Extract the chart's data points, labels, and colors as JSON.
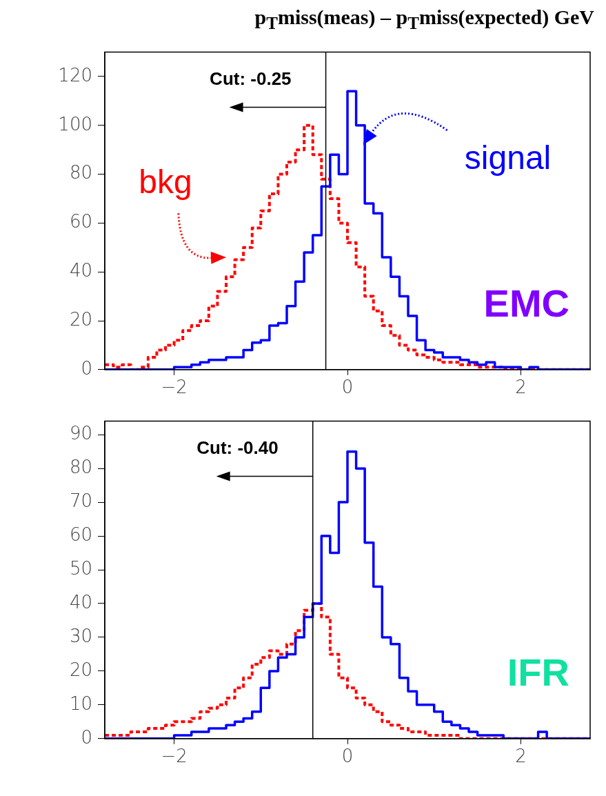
{
  "chart_data": [
    {
      "type": "histogram",
      "title": "p$_{T}$miss(meas) – p$_{T}$miss(expected) GeV",
      "bins": [
        -2.8,
        -2.7,
        -2.6,
        -2.5,
        -2.4,
        -2.3,
        -2.2,
        -2.1,
        -2.0,
        -1.9,
        -1.8,
        -1.7,
        -1.6,
        -1.5,
        -1.4,
        -1.3,
        -1.2,
        -1.1,
        -1.0,
        -0.9,
        -0.8,
        -0.7,
        -0.6,
        -0.5,
        -0.4,
        -0.3,
        -0.2,
        -0.1,
        0.0,
        0.1,
        0.2,
        0.3,
        0.4,
        0.5,
        0.6,
        0.7,
        0.8,
        0.9,
        1.0,
        1.1,
        1.2,
        1.3,
        1.4,
        1.5,
        1.6,
        1.7,
        1.8,
        1.9,
        2.0,
        2.1,
        2.2,
        2.3,
        2.4,
        2.5,
        2.6,
        2.7,
        2.8
      ],
      "series": [
        {
          "name": "signal",
          "color": "#0000ff",
          "line_style": "solid",
          "values": [
            0,
            0,
            0,
            0,
            0,
            0,
            0,
            0,
            1,
            1,
            2,
            3,
            4,
            4,
            5,
            5,
            8,
            11,
            12,
            18,
            19,
            26,
            36,
            48,
            55,
            75,
            88,
            80,
            114,
            100,
            68,
            64,
            46,
            38,
            30,
            22,
            12,
            8,
            7,
            5,
            5,
            4,
            3,
            2,
            3,
            1,
            1,
            1,
            0,
            1,
            0,
            0,
            0,
            0,
            0,
            0
          ]
        },
        {
          "name": "bkg",
          "color": "#ff0000",
          "line_style": "dashed",
          "values": [
            2,
            1,
            2,
            0,
            1,
            5,
            8,
            10,
            12,
            16,
            18,
            20,
            26,
            32,
            38,
            45,
            50,
            58,
            65,
            72,
            80,
            85,
            90,
            100,
            88,
            78,
            70,
            60,
            52,
            42,
            30,
            24,
            18,
            14,
            10,
            8,
            6,
            5,
            4,
            3,
            3,
            2,
            2,
            1,
            1,
            1,
            0,
            0,
            0,
            0,
            0,
            0,
            0,
            0,
            0,
            0
          ]
        }
      ],
      "xlim": [
        -2.8,
        2.8
      ],
      "xticks": [
        -2,
        0,
        2
      ],
      "ylim": [
        0,
        130
      ],
      "yticks": [
        0,
        20,
        40,
        60,
        80,
        100,
        120
      ],
      "ref_lines": [
        {
          "axis": "x",
          "value": -0.25,
          "label": "Cut: -0.25",
          "color": "#000000"
        }
      ],
      "annotations": [
        "EMC"
      ],
      "grid": false,
      "legend": false
    },
    {
      "type": "histogram",
      "bins": [
        -2.8,
        -2.7,
        -2.6,
        -2.5,
        -2.4,
        -2.3,
        -2.2,
        -2.1,
        -2.0,
        -1.9,
        -1.8,
        -1.7,
        -1.6,
        -1.5,
        -1.4,
        -1.3,
        -1.2,
        -1.1,
        -1.0,
        -0.9,
        -0.8,
        -0.7,
        -0.6,
        -0.5,
        -0.4,
        -0.3,
        -0.2,
        -0.1,
        0.0,
        0.1,
        0.2,
        0.3,
        0.4,
        0.5,
        0.6,
        0.7,
        0.8,
        0.9,
        1.0,
        1.1,
        1.2,
        1.3,
        1.4,
        1.5,
        1.6,
        1.7,
        1.8,
        1.9,
        2.0,
        2.1,
        2.2,
        2.3,
        2.4,
        2.5,
        2.6,
        2.7,
        2.8
      ],
      "series": [
        {
          "color": "#0000ff",
          "line_style": "solid",
          "values": [
            0,
            0,
            0,
            0,
            0,
            0,
            0,
            0,
            1,
            1,
            2,
            2,
            3,
            3,
            4,
            5,
            6,
            8,
            15,
            20,
            24,
            25,
            30,
            36,
            40,
            60,
            55,
            70,
            85,
            80,
            58,
            45,
            30,
            28,
            18,
            14,
            10,
            10,
            8,
            5,
            4,
            3,
            2,
            1,
            1,
            1,
            0,
            0,
            0,
            0,
            2,
            0,
            0,
            0,
            0,
            0
          ]
        },
        {
          "color": "#ff0000",
          "line_style": "dashed",
          "values": [
            1,
            1,
            1,
            2,
            2,
            3,
            3,
            4,
            5,
            5,
            6,
            8,
            9,
            10,
            12,
            15,
            18,
            22,
            24,
            26,
            25,
            28,
            32,
            38,
            40,
            36,
            25,
            18,
            15,
            12,
            10,
            8,
            5,
            4,
            3,
            2,
            2,
            1,
            1,
            1,
            1,
            0,
            0,
            0,
            0,
            0,
            0,
            0,
            0,
            0,
            0,
            0,
            0,
            0,
            0,
            0
          ]
        }
      ],
      "xlim": [
        -2.8,
        2.8
      ],
      "xticks": [
        -2,
        0,
        2
      ],
      "ylim": [
        0,
        94
      ],
      "yticks": [
        0,
        10,
        20,
        30,
        40,
        50,
        60,
        70,
        80,
        90
      ],
      "ref_lines": [
        {
          "axis": "x",
          "value": -0.4,
          "label": "Cut: -0.40",
          "color": "#000000"
        }
      ],
      "annotations": [
        "IFR"
      ],
      "grid": false,
      "legend": false
    }
  ]
}
